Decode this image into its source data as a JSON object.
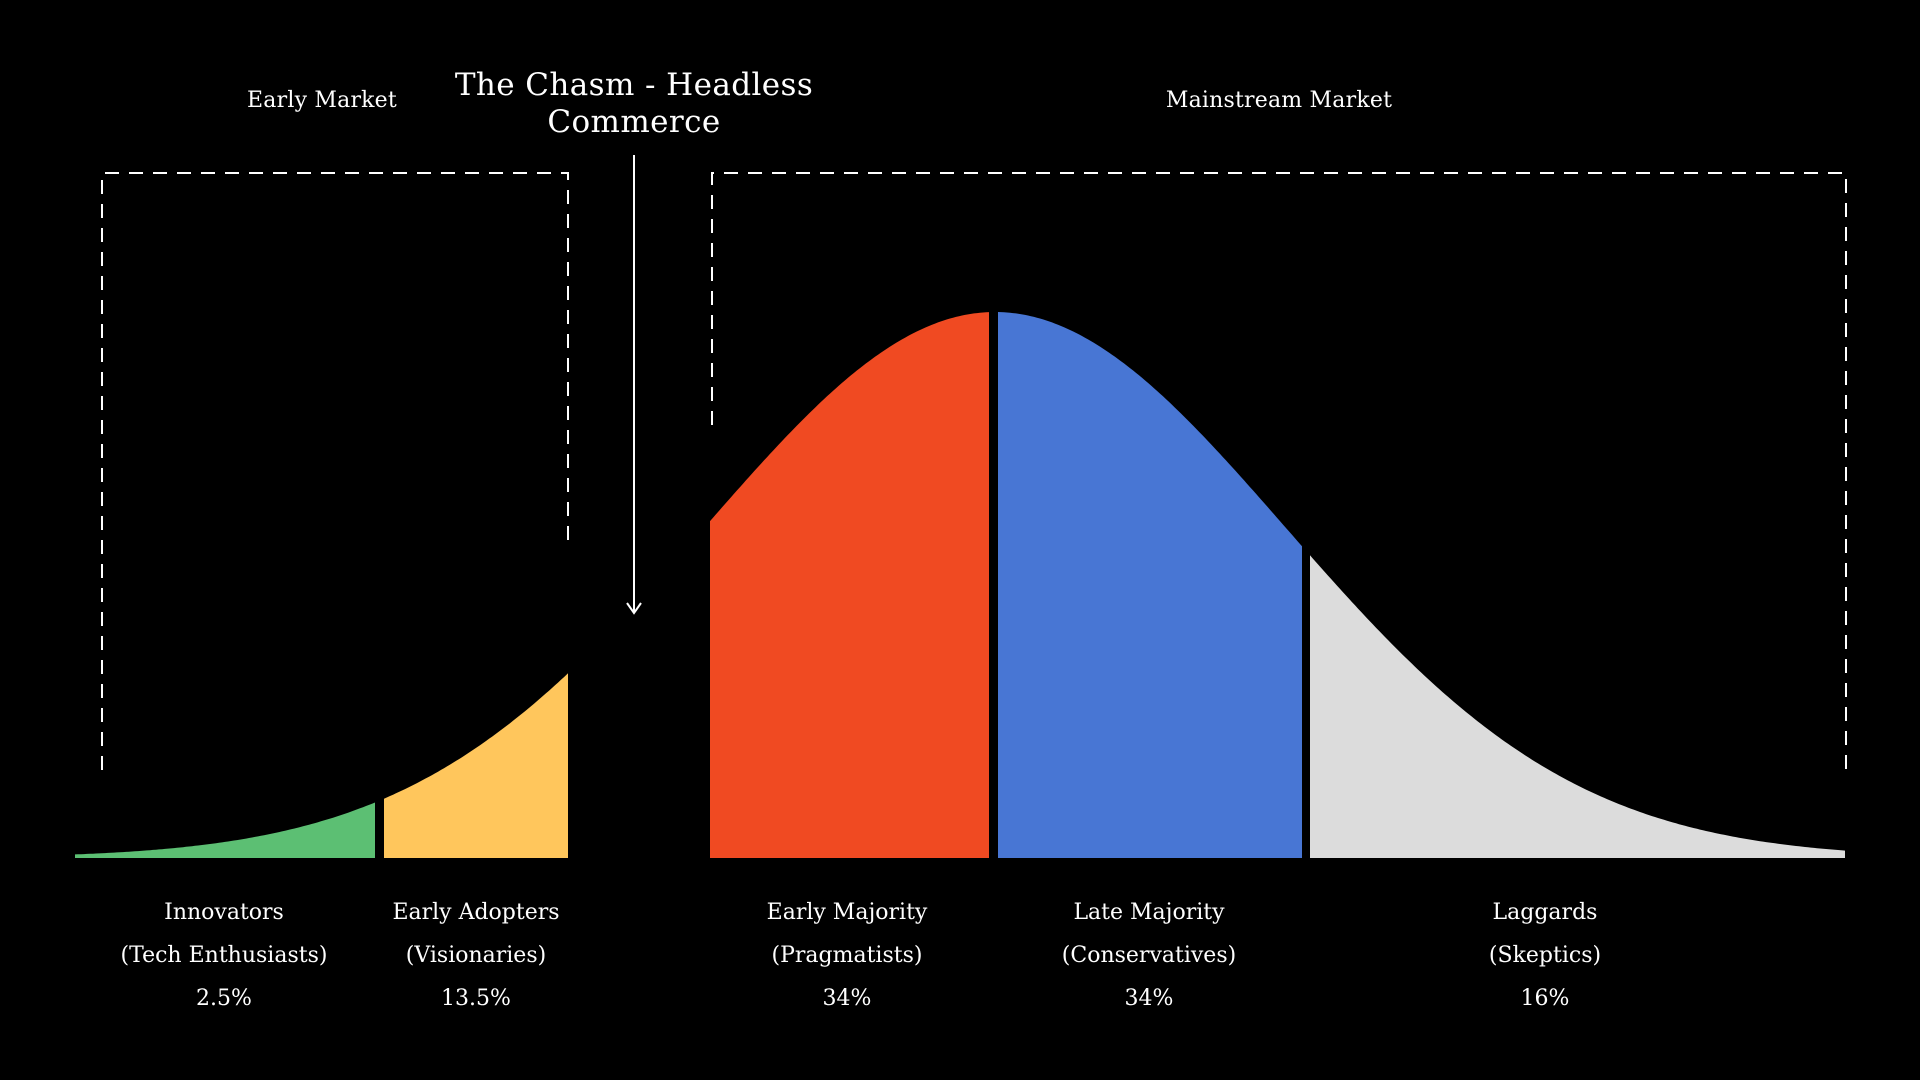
{
  "colors": {
    "background": "#000000",
    "text": "#ffffff",
    "innovators": "#5cbf73",
    "early_adopters": "#ffc65c",
    "early_majority": "#f04a22",
    "late_majority": "#4876d4",
    "laggards": "#dcdcdc"
  },
  "markets": {
    "early": "Early Market",
    "mainstream": "Mainstream Market"
  },
  "chasm": {
    "title_line1": "The Chasm - Headless",
    "title_line2": "Commerce"
  },
  "segments": [
    {
      "name": "Innovators",
      "subtitle": "(Tech Enthusiasts)",
      "share": "2.5%"
    },
    {
      "name": "Early Adopters",
      "subtitle": "(Visionaries)",
      "share": "13.5%"
    },
    {
      "name": "Early Majority",
      "subtitle": "(Pragmatists)",
      "share": "34%"
    },
    {
      "name": "Late Majority",
      "subtitle": "(Conservatives)",
      "share": "34%"
    },
    {
      "name": "Laggards",
      "subtitle": "(Skeptics)",
      "share": "16%"
    }
  ]
}
